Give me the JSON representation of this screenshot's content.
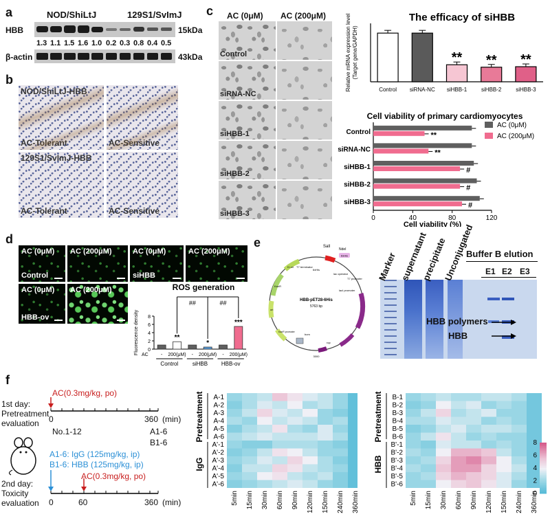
{
  "panel_a": {
    "letter": "a",
    "strain1": "NOD/ShiLtJ",
    "strain2": "129S1/SvImJ",
    "row1": "HBB",
    "row2": "β-actin",
    "kda1": "15kDa",
    "kda2": "43kDa",
    "ratios": [
      "1.3",
      "1.1",
      "1.5",
      "1.6",
      "1.0",
      "0.2",
      "0.3",
      "0.8",
      "0.4",
      "0.5"
    ]
  },
  "panel_b": {
    "letter": "b",
    "row1_title": "NOD/ShiLtJ-HBB",
    "row2_title": "129S1/SvImJ-HBB",
    "tolerant": "AC-Tolerant",
    "sensitive": "AC-Sensitive"
  },
  "panel_c": {
    "letter": "c",
    "col1": "AC (0μM)",
    "col2": "AC (200μM)",
    "rows": [
      "Control",
      "siRNA-NC",
      "siHBB-1",
      "siHBB-2",
      "siHBB-3"
    ],
    "chart_data": [
      {
        "type": "bar",
        "title": "The efficacy of siHBB",
        "ylabel": "Relative mRNA expression level (Target gene/GAPDH)",
        "ylabel1": "Relative mRNA expression level",
        "ylabel2": "(Target gene/GAPDH)",
        "categories": [
          "Control",
          "siRNA-NC",
          "siHBB-1",
          "siHBB-2",
          "siHBB-3"
        ],
        "values": [
          1.0,
          1.0,
          0.35,
          0.3,
          0.31
        ],
        "ylim": [
          0,
          1.2
        ],
        "annotations": [
          "",
          "",
          "**",
          "**",
          "**"
        ],
        "colors": [
          "#ffffff",
          "#5a5a5a",
          "#f6c6d3",
          "#e87a98",
          "#e06088"
        ]
      },
      {
        "type": "bar",
        "orientation": "horizontal",
        "title": "Cell viability of primary cardiomyocytes",
        "xlabel": "Cell viability (%)",
        "categories": [
          "Control",
          "siRNA-NC",
          "siHBB-1",
          "siHBB-2",
          "siHBB-3"
        ],
        "xticks": [
          "0",
          "40",
          "80",
          "120"
        ],
        "xlim": [
          0,
          120
        ],
        "series": [
          {
            "name": "AC (0μM)",
            "values": [
              100,
              100,
              102,
              105,
              108
            ],
            "color": "#5f5f5f"
          },
          {
            "name": "AC (200μM)",
            "values": [
              52,
              56,
              88,
              88,
              90
            ],
            "color": "#f06c8f"
          }
        ],
        "annotations": [
          "**",
          "**",
          "#",
          "#",
          "#"
        ]
      }
    ]
  },
  "panel_d": {
    "letter": "d",
    "top_labels": [
      "AC (0μM)",
      "AC (200μM)",
      "AC (0μM)",
      "AC (200μM)"
    ],
    "bottom_labels": [
      "AC (0μM)",
      "AC (200μM)"
    ],
    "group_control": "Control",
    "group_sihbb": "siHBB",
    "group_hbbov": "HBB-ov",
    "chart_data": {
      "type": "bar",
      "title": "ROS generation",
      "ylabel": "Fluorescence density",
      "yticks": [
        "0",
        "2",
        "4",
        "6",
        "8"
      ],
      "ylim": [
        0,
        8
      ],
      "row_label": "AC",
      "ac_levels": [
        "-",
        "200(μM)",
        "-",
        "200(μM)",
        "-",
        "200(μM)"
      ],
      "groups": [
        "Control",
        "siHBB",
        "HBB-ov"
      ],
      "values": [
        1.0,
        1.8,
        1.0,
        0.5,
        1.0,
        5.5
      ],
      "colors": [
        "#5f5f5f",
        "#ffffff",
        "#5f5f5f",
        "#5aa0e0",
        "#5f5f5f",
        "#f06c8f"
      ],
      "annotations": [
        "",
        "**",
        "",
        "*",
        "",
        "***"
      ],
      "comparisons": [
        "##",
        "##"
      ]
    }
  },
  "panel_e": {
    "letter": "e",
    "plasmid_name": "HBB-pET28-6His",
    "plasmid_size": "5763 bp",
    "sites": [
      "SalI",
      "NdeI",
      "6xHis"
    ],
    "features": [
      "T7 terminator",
      "6xHis",
      "HBB",
      "lac operator",
      "T7 promoter",
      "lacI promoter",
      "lacI",
      "rop",
      "bom",
      "f1 ori",
      "KanR",
      "ori",
      "KanR promoter"
    ],
    "tick": "3000",
    "lanes": [
      "Marker",
      "supernatant",
      "precipitate",
      "Unconjugated"
    ],
    "elution_title": "Buffer B elution",
    "elution_lanes": [
      "E1",
      "E2",
      "E3"
    ],
    "arrow1": "HBB polymers",
    "arrow2": "HBB"
  },
  "panel_f": {
    "letter": "f",
    "day1_title": "1st day:",
    "day1_sub1": "Pretreatment",
    "day1_sub2": "evaluation",
    "dose1": "AC(0.3mg/kg, po)",
    "t0": "0",
    "t360": "360",
    "min_label": "(min)",
    "mice": "No.1-12",
    "g1": "A1-6",
    "g2": "B1-6",
    "day2_title": "2nd day:",
    "day2_sub": "Toxicity",
    "day2_sub2": "evaluation",
    "inj1": "A1-6: IgG (125mg/kg, ip)",
    "inj2": "B1-6: HBB (125mg/kg, ip)",
    "dose2": "AC(0.3mg/kg, po)",
    "t60": "60",
    "t360b": "360",
    "min_b": "(min)",
    "heatmap_times": [
      "5min",
      "15min",
      "30min",
      "60min",
      "90min",
      "120min",
      "150min",
      "240min",
      "360min"
    ],
    "heatmap_left_rows": [
      "A-1",
      "A-2",
      "A-3",
      "A-4",
      "A-5",
      "A-6",
      "A'-1",
      "A'-2",
      "A'-3",
      "A'-4",
      "A'-5",
      "A'-6"
    ],
    "heatmap_right_rows": [
      "B-1",
      "B-2",
      "B-3",
      "B-4",
      "B-5",
      "B-6",
      "B'-1",
      "B'-2",
      "B'-3",
      "B'-4",
      "B'-5",
      "B'-6"
    ],
    "left_group1": "Pretreatment",
    "left_group2": "IgG",
    "right_group1": "Pretreatment",
    "right_group2": "HBB",
    "colorbar_ticks": [
      "8",
      "6",
      "4",
      "2",
      "0"
    ],
    "chart_data": [
      {
        "type": "heatmap",
        "rows": [
          "A-1",
          "A-2",
          "A-3",
          "A-4",
          "A-5",
          "A-6",
          "A'-1",
          "A'-2",
          "A'-3",
          "A'-4",
          "A'-5",
          "A'-6"
        ],
        "columns": [
          "5min",
          "15min",
          "30min",
          "60min",
          "90min",
          "120min",
          "150min",
          "240min",
          "360min"
        ],
        "values": [
          [
            2,
            2.5,
            3,
            5.5,
            4.5,
            3.5,
            3,
            2,
            0.5
          ],
          [
            1.5,
            2.5,
            3.5,
            3,
            4,
            2.5,
            3,
            2,
            0.5
          ],
          [
            2,
            3,
            5,
            3.5,
            3,
            4,
            2,
            1.5,
            0.5
          ],
          [
            2.5,
            2,
            4,
            3,
            3.5,
            3,
            2,
            2.5,
            0.5
          ],
          [
            1.5,
            2.5,
            3,
            4.5,
            2.5,
            2,
            3.5,
            2,
            0.5
          ],
          [
            2.5,
            3,
            3.5,
            3,
            3,
            3,
            3.5,
            2.5,
            0.5
          ],
          [
            2,
            1.5,
            1.5,
            2.5,
            2.5,
            2.5,
            2,
            1.5,
            0.5
          ],
          [
            1.5,
            2,
            3,
            4.5,
            4,
            3,
            2,
            2,
            0.5
          ],
          [
            2,
            2.5,
            3.5,
            3,
            5,
            4,
            2.5,
            1.5,
            0.5
          ],
          [
            1.5,
            3,
            3,
            5,
            4.5,
            3,
            2.5,
            2,
            0.5
          ],
          [
            2,
            2.5,
            4,
            4.5,
            3,
            2.5,
            3,
            1.5,
            0.5
          ],
          [
            1.5,
            2,
            2.5,
            3,
            3.5,
            3,
            2,
            1.5,
            0.5
          ]
        ],
        "vmin": 0,
        "vmax": 8
      },
      {
        "type": "heatmap",
        "rows": [
          "B-1",
          "B-2",
          "B-3",
          "B-4",
          "B-5",
          "B-6",
          "B'-1",
          "B'-2",
          "B'-3",
          "B'-4",
          "B'-5",
          "B'-6"
        ],
        "columns": [
          "5min",
          "15min",
          "30min",
          "60min",
          "90min",
          "120min",
          "150min",
          "240min",
          "360min"
        ],
        "values": [
          [
            2,
            2.5,
            3,
            2.5,
            2.5,
            3,
            3,
            2.5,
            1
          ],
          [
            1.5,
            2,
            4,
            3,
            3.5,
            2,
            2.5,
            2,
            1
          ],
          [
            2,
            3,
            5,
            2.5,
            3,
            3.5,
            2,
            2,
            1
          ],
          [
            2.5,
            2.5,
            3.5,
            3,
            3,
            2,
            2.5,
            2,
            1
          ],
          [
            1.5,
            2,
            3,
            3.5,
            2.5,
            3,
            3,
            2.5,
            1
          ],
          [
            2,
            3,
            4.5,
            3,
            2,
            2.5,
            2,
            2,
            1
          ],
          [
            2,
            1.5,
            3.5,
            3,
            3,
            2,
            2.5,
            2,
            1
          ],
          [
            2.5,
            2,
            4,
            6,
            6,
            5.5,
            3,
            2,
            1
          ],
          [
            2,
            2.5,
            5,
            6.5,
            7,
            6,
            4,
            2.5,
            1
          ],
          [
            2.5,
            2,
            5.5,
            6.5,
            6.5,
            5,
            4,
            3,
            1
          ],
          [
            2,
            2.5,
            5,
            6,
            5.5,
            5,
            3.5,
            2.5,
            1
          ],
          [
            2,
            2,
            4,
            5,
            5.5,
            4.5,
            3.5,
            2,
            1
          ]
        ],
        "vmin": 0,
        "vmax": 8
      }
    ]
  }
}
